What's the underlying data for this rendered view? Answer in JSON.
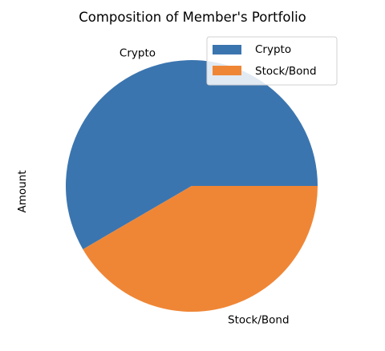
{
  "chart_data": {
    "type": "pie",
    "title": "Composition of Member's Portfolio",
    "ylabel": "Amount",
    "categories": [
      "Crypto",
      "Stock/Bond"
    ],
    "values": [
      58.4,
      41.6
    ],
    "value_unit": "percent of total",
    "colors": [
      "#3b75af",
      "#ef8636"
    ],
    "start_angle_deg": 0,
    "legend": {
      "position": "top-right",
      "entries": [
        "Crypto",
        "Stock/Bond"
      ]
    }
  }
}
